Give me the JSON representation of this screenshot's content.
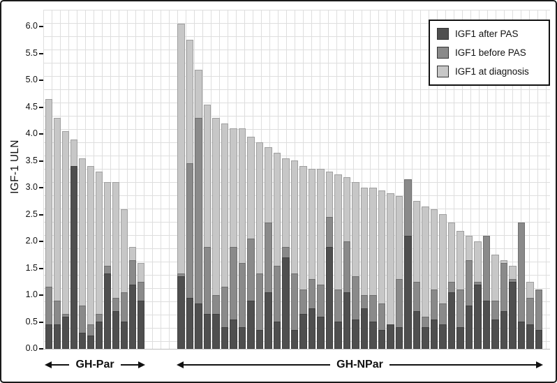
{
  "figure": {
    "ylabel": "IGF-1 ULN"
  },
  "chart_data": {
    "type": "bar",
    "subtype": "overlaid-per-patient",
    "title": "",
    "ylabel": "IGF-1 ULN",
    "xlabel": "",
    "ylim": [
      0,
      6.2
    ],
    "yticks": [
      0,
      0.5,
      1,
      1.5,
      2,
      2.5,
      3,
      3.5,
      4,
      4.5,
      5,
      5.5,
      6
    ],
    "grid": true,
    "legend_position": "top-right",
    "series": [
      {
        "key": "after",
        "label": "IGF1 after PAS",
        "color": "#4f4f4f"
      },
      {
        "key": "before",
        "label": "IGF1 before PAS",
        "color": "#8a8a8a"
      },
      {
        "key": "diagnosis",
        "label": "IGF1 at diagnosis",
        "color": "#c7c7c7"
      }
    ],
    "groups": [
      {
        "label": "GH-Par",
        "patients": [
          {
            "diagnosis": 4.65,
            "before": 1.15,
            "after": 0.45
          },
          {
            "diagnosis": 4.3,
            "before": 0.9,
            "after": 0.45
          },
          {
            "diagnosis": 4.05,
            "before": 0.65,
            "after": 0.6
          },
          {
            "diagnosis": 3.9,
            "before": 1.8,
            "after": 3.4
          },
          {
            "diagnosis": 3.55,
            "before": 0.8,
            "after": 0.3
          },
          {
            "diagnosis": 3.4,
            "before": 0.45,
            "after": 0.25
          },
          {
            "diagnosis": 3.3,
            "before": 0.65,
            "after": 0.5
          },
          {
            "diagnosis": 3.1,
            "before": 1.55,
            "after": 1.4
          },
          {
            "diagnosis": 3.1,
            "before": 0.95,
            "after": 0.7
          },
          {
            "diagnosis": 2.6,
            "before": 1.05,
            "after": 0.5
          },
          {
            "diagnosis": 1.9,
            "before": 1.65,
            "after": 1.2
          },
          {
            "diagnosis": 1.6,
            "before": 1.25,
            "after": 0.9
          }
        ]
      },
      {
        "label": "GH-NPar",
        "patients": [
          {
            "diagnosis": 6.05,
            "before": 1.4,
            "after": 1.35
          },
          {
            "diagnosis": 5.75,
            "before": 3.45,
            "after": 0.95
          },
          {
            "diagnosis": 5.2,
            "before": 4.3,
            "after": 0.85
          },
          {
            "diagnosis": 4.55,
            "before": 1.9,
            "after": 0.65
          },
          {
            "diagnosis": 4.3,
            "before": 1.0,
            "after": 0.65
          },
          {
            "diagnosis": 4.2,
            "before": 1.15,
            "after": 0.4
          },
          {
            "diagnosis": 4.1,
            "before": 1.9,
            "after": 0.55
          },
          {
            "diagnosis": 4.1,
            "before": 1.6,
            "after": 0.4
          },
          {
            "diagnosis": 3.95,
            "before": 2.05,
            "after": 0.9
          },
          {
            "diagnosis": 3.85,
            "before": 1.4,
            "after": 0.35
          },
          {
            "diagnosis": 3.75,
            "before": 2.35,
            "after": 1.05
          },
          {
            "diagnosis": 3.65,
            "before": 1.55,
            "after": 0.5
          },
          {
            "diagnosis": 3.55,
            "before": 1.9,
            "after": 1.7
          },
          {
            "diagnosis": 3.5,
            "before": 1.4,
            "after": 0.35
          },
          {
            "diagnosis": 3.4,
            "before": 1.1,
            "after": 0.65
          },
          {
            "diagnosis": 3.35,
            "before": 1.3,
            "after": 0.75
          },
          {
            "diagnosis": 3.35,
            "before": 1.2,
            "after": 0.6
          },
          {
            "diagnosis": 3.3,
            "before": 2.45,
            "after": 1.9
          },
          {
            "diagnosis": 3.25,
            "before": 1.1,
            "after": 0.5
          },
          {
            "diagnosis": 3.2,
            "before": 2.0,
            "after": 1.05
          },
          {
            "diagnosis": 3.1,
            "before": 1.35,
            "after": 0.55
          },
          {
            "diagnosis": 3.0,
            "before": 1.0,
            "after": 0.75
          },
          {
            "diagnosis": 3.0,
            "before": 1.0,
            "after": 0.5
          },
          {
            "diagnosis": 2.95,
            "before": 0.85,
            "after": 0.35
          },
          {
            "diagnosis": 2.9,
            "before": 0.45,
            "after": 0.45
          },
          {
            "diagnosis": 2.85,
            "before": 1.3,
            "after": 0.4
          },
          {
            "diagnosis": 2.8,
            "before": 3.15,
            "after": 2.1
          },
          {
            "diagnosis": 2.75,
            "before": 1.25,
            "after": 0.7
          },
          {
            "diagnosis": 2.65,
            "before": 0.6,
            "after": 0.4
          },
          {
            "diagnosis": 2.6,
            "before": 1.1,
            "after": 0.55
          },
          {
            "diagnosis": 2.5,
            "before": 0.85,
            "after": 0.45
          },
          {
            "diagnosis": 2.35,
            "before": 1.25,
            "after": 1.05
          },
          {
            "diagnosis": 2.2,
            "before": 1.1,
            "after": 0.4
          },
          {
            "diagnosis": 2.1,
            "before": 1.65,
            "after": 0.8
          },
          {
            "diagnosis": 2.0,
            "before": 1.25,
            "after": 1.2
          },
          {
            "diagnosis": 1.9,
            "before": 2.1,
            "after": 0.9
          },
          {
            "diagnosis": 1.75,
            "before": 0.9,
            "after": 0.55
          },
          {
            "diagnosis": 1.65,
            "before": 1.6,
            "after": 0.7
          },
          {
            "diagnosis": 1.55,
            "before": 1.3,
            "after": 1.25
          },
          {
            "diagnosis": 1.4,
            "before": 2.35,
            "after": 0.5
          },
          {
            "diagnosis": 1.25,
            "before": 0.95,
            "after": 0.45
          },
          {
            "diagnosis": 1.1,
            "before": 1.1,
            "after": 0.35
          }
        ]
      }
    ]
  }
}
